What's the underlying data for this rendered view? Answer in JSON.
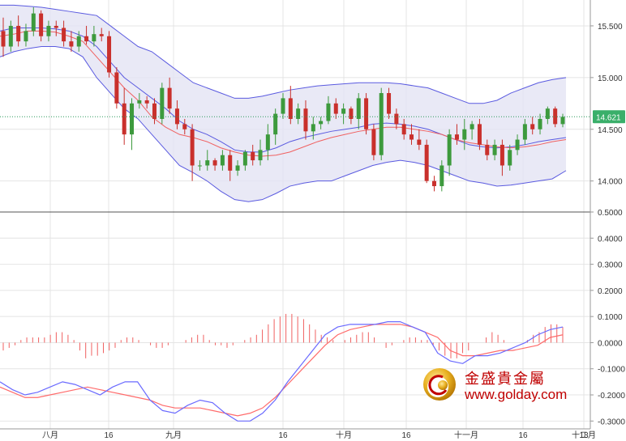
{
  "chart_data": [
    {
      "type": "candlestick",
      "panel": "price",
      "indicators": [
        "Bollinger Bands",
        "Moving Average"
      ],
      "ylim": [
        13.7,
        15.75
      ],
      "y_ticks": [
        "14.000",
        "14.500",
        "15.000",
        "15.500"
      ],
      "current_price": "14.621",
      "x_labels": [
        "八月",
        "16",
        "九月",
        "16",
        "十月",
        "16",
        "十一月",
        "16",
        "十二月",
        "18"
      ],
      "grid": true,
      "ohlc": [
        [
          15.45,
          15.58,
          15.2,
          15.3
        ],
        [
          15.3,
          15.55,
          15.25,
          15.5
        ],
        [
          15.5,
          15.6,
          15.3,
          15.35
        ],
        [
          15.35,
          15.52,
          15.3,
          15.45
        ],
        [
          15.45,
          15.68,
          15.4,
          15.62
        ],
        [
          15.62,
          15.65,
          15.35,
          15.4
        ],
        [
          15.4,
          15.55,
          15.35,
          15.5
        ],
        [
          15.5,
          15.55,
          15.4,
          15.48
        ],
        [
          15.48,
          15.55,
          15.3,
          15.35
        ],
        [
          15.35,
          15.45,
          15.25,
          15.3
        ],
        [
          15.3,
          15.45,
          15.25,
          15.4
        ],
        [
          15.4,
          15.5,
          15.32,
          15.35
        ],
        [
          15.35,
          15.5,
          15.3,
          15.42
        ],
        [
          15.42,
          15.48,
          15.35,
          15.4
        ],
        [
          15.4,
          15.45,
          15.0,
          15.05
        ],
        [
          15.05,
          15.1,
          14.7,
          14.75
        ],
        [
          14.75,
          14.9,
          14.35,
          14.45
        ],
        [
          14.45,
          14.8,
          14.3,
          14.75
        ],
        [
          14.75,
          14.85,
          14.7,
          14.78
        ],
        [
          14.78,
          14.82,
          14.7,
          14.75
        ],
        [
          14.75,
          14.8,
          14.55,
          14.6
        ],
        [
          14.6,
          14.95,
          14.55,
          14.9
        ],
        [
          14.9,
          15.0,
          14.65,
          14.7
        ],
        [
          14.7,
          14.78,
          14.5,
          14.55
        ],
        [
          14.55,
          14.6,
          14.45,
          14.5
        ],
        [
          14.5,
          14.55,
          14.0,
          14.15
        ],
        [
          14.15,
          14.2,
          14.1,
          14.15
        ],
        [
          14.15,
          14.3,
          14.1,
          14.2
        ],
        [
          14.2,
          14.22,
          14.1,
          14.15
        ],
        [
          14.15,
          14.3,
          14.1,
          14.25
        ],
        [
          14.25,
          14.3,
          14.0,
          14.1
        ],
        [
          14.1,
          14.2,
          14.05,
          14.15
        ],
        [
          14.15,
          14.3,
          14.1,
          14.28
        ],
        [
          14.28,
          14.35,
          14.15,
          14.2
        ],
        [
          14.2,
          14.4,
          14.15,
          14.3
        ],
        [
          14.3,
          14.55,
          14.2,
          14.45
        ],
        [
          14.45,
          14.7,
          14.35,
          14.65
        ],
        [
          14.65,
          14.85,
          14.6,
          14.8
        ],
        [
          14.8,
          14.92,
          14.55,
          14.6
        ],
        [
          14.6,
          14.75,
          14.55,
          14.7
        ],
        [
          14.7,
          14.78,
          14.4,
          14.48
        ],
        [
          14.48,
          14.62,
          14.4,
          14.55
        ],
        [
          14.55,
          14.62,
          14.5,
          14.58
        ],
        [
          14.58,
          14.82,
          14.55,
          14.75
        ],
        [
          14.75,
          14.8,
          14.6,
          14.65
        ],
        [
          14.65,
          14.75,
          14.55,
          14.7
        ],
        [
          14.7,
          14.72,
          14.55,
          14.6
        ],
        [
          14.6,
          14.85,
          14.5,
          14.8
        ],
        [
          14.8,
          14.85,
          14.45,
          14.5
        ],
        [
          14.5,
          14.55,
          14.2,
          14.25
        ],
        [
          14.25,
          14.9,
          14.2,
          14.85
        ],
        [
          14.85,
          14.9,
          14.6,
          14.65
        ],
        [
          14.65,
          14.7,
          14.5,
          14.55
        ],
        [
          14.55,
          14.6,
          14.4,
          14.45
        ],
        [
          14.45,
          14.55,
          14.35,
          14.4
        ],
        [
          14.4,
          14.5,
          14.3,
          14.35
        ],
        [
          14.35,
          14.4,
          13.98,
          14.0
        ],
        [
          14.0,
          14.05,
          13.9,
          13.95
        ],
        [
          13.95,
          14.2,
          13.9,
          14.15
        ],
        [
          14.15,
          14.5,
          14.05,
          14.45
        ],
        [
          14.45,
          14.55,
          14.35,
          14.4
        ],
        [
          14.4,
          14.6,
          14.3,
          14.5
        ],
        [
          14.5,
          14.58,
          14.4,
          14.55
        ],
        [
          14.55,
          14.6,
          14.3,
          14.35
        ],
        [
          14.35,
          14.4,
          14.2,
          14.25
        ],
        [
          14.25,
          14.4,
          14.2,
          14.35
        ],
        [
          14.35,
          14.4,
          14.05,
          14.15
        ],
        [
          14.15,
          14.35,
          14.1,
          14.3
        ],
        [
          14.3,
          14.45,
          14.25,
          14.4
        ],
        [
          14.4,
          14.6,
          14.35,
          14.55
        ],
        [
          14.55,
          14.62,
          14.45,
          14.5
        ],
        [
          14.5,
          14.65,
          14.45,
          14.6
        ],
        [
          14.6,
          14.72,
          14.55,
          14.7
        ],
        [
          14.7,
          14.72,
          14.52,
          14.55
        ],
        [
          14.55,
          14.65,
          14.52,
          14.62
        ]
      ],
      "bollinger_upper": [
        15.7,
        15.7,
        15.69,
        15.68,
        15.66,
        15.64,
        15.62,
        15.6,
        15.5,
        15.4,
        15.3,
        15.25,
        15.15,
        15.05,
        14.95,
        14.9,
        14.85,
        14.8,
        14.8,
        14.82,
        14.85,
        14.88,
        14.9,
        14.92,
        14.93,
        14.94,
        14.95,
        14.95,
        14.95,
        14.94,
        14.92,
        14.9,
        14.85,
        14.8,
        14.75,
        14.75,
        14.78,
        14.85,
        14.9,
        14.95,
        14.98,
        15.0
      ],
      "bollinger_lower": [
        15.2,
        15.25,
        15.28,
        15.3,
        15.3,
        15.28,
        15.2,
        15.0,
        14.85,
        14.7,
        14.6,
        14.45,
        14.3,
        14.15,
        14.08,
        14.0,
        13.9,
        13.82,
        13.8,
        13.82,
        13.88,
        13.95,
        13.98,
        14.0,
        14.0,
        14.05,
        14.1,
        14.15,
        14.18,
        14.2,
        14.18,
        14.15,
        14.1,
        14.05,
        14.0,
        13.98,
        13.95,
        13.96,
        13.98,
        14.0,
        14.02,
        14.1
      ],
      "bollinger_middle": [
        15.45,
        15.48,
        15.48,
        15.48,
        15.47,
        15.45,
        15.4,
        15.3,
        15.15,
        15.0,
        14.9,
        14.8,
        14.7,
        14.58,
        14.5,
        14.45,
        14.38,
        14.3,
        14.28,
        14.28,
        14.32,
        14.38,
        14.42,
        14.45,
        14.48,
        14.5,
        14.52,
        14.55,
        14.56,
        14.55,
        14.53,
        14.5,
        14.45,
        14.4,
        14.35,
        14.33,
        14.32,
        14.33,
        14.35,
        14.38,
        14.4,
        14.42
      ],
      "moving_average": [
        15.4,
        15.42,
        15.45,
        15.45,
        15.44,
        15.4,
        15.35,
        15.2,
        15.05,
        14.9,
        14.78,
        14.62,
        14.52,
        14.45,
        14.42,
        14.38,
        14.32,
        14.28,
        14.25,
        14.24,
        14.25,
        14.28,
        14.33,
        14.38,
        14.42,
        14.45,
        14.48,
        14.5,
        14.52,
        14.52,
        14.5,
        14.48,
        14.45,
        14.4,
        14.37,
        14.35,
        14.33,
        14.32,
        14.33,
        14.35,
        14.38,
        14.4
      ]
    },
    {
      "type": "line",
      "panel": "MACD",
      "ylim": [
        -0.33,
        0.5
      ],
      "y_ticks": [
        "-0.3000",
        "-0.2000",
        "-0.1000",
        "0.0000",
        "0.1000",
        "0.2000",
        "0.3000",
        "0.4000",
        "0.5000"
      ],
      "macd_line": [
        -0.15,
        -0.18,
        -0.2,
        -0.19,
        -0.17,
        -0.15,
        -0.16,
        -0.18,
        -0.2,
        -0.17,
        -0.15,
        -0.15,
        -0.22,
        -0.26,
        -0.27,
        -0.24,
        -0.22,
        -0.23,
        -0.27,
        -0.3,
        -0.3,
        -0.27,
        -0.22,
        -0.15,
        -0.09,
        -0.03,
        0.03,
        0.06,
        0.07,
        0.07,
        0.07,
        0.08,
        0.08,
        0.06,
        0.04,
        -0.04,
        -0.07,
        -0.08,
        -0.05,
        -0.05,
        -0.04,
        -0.02,
        0.0,
        0.03,
        0.05,
        0.06
      ],
      "signal_line": [
        -0.17,
        -0.19,
        -0.21,
        -0.21,
        -0.2,
        -0.19,
        -0.18,
        -0.17,
        -0.18,
        -0.19,
        -0.2,
        -0.21,
        -0.22,
        -0.24,
        -0.25,
        -0.25,
        -0.25,
        -0.26,
        -0.27,
        -0.28,
        -0.27,
        -0.25,
        -0.21,
        -0.16,
        -0.11,
        -0.06,
        -0.01,
        0.03,
        0.05,
        0.06,
        0.07,
        0.07,
        0.07,
        0.06,
        0.04,
        0.02,
        -0.03,
        -0.05,
        -0.05,
        -0.04,
        -0.03,
        -0.03,
        -0.02,
        -0.01,
        0.02,
        0.03
      ],
      "histogram": [
        -0.03,
        -0.02,
        -0.01,
        0.01,
        0.02,
        0.02,
        0.02,
        0.02,
        0.03,
        0.04,
        0.04,
        0.03,
        0.01,
        -0.03,
        -0.06,
        -0.05,
        -0.05,
        -0.04,
        -0.03,
        -0.02,
        0.01,
        0.02,
        0.02,
        0.01,
        0.0,
        -0.01,
        -0.02,
        -0.02,
        -0.01,
        0.0,
        0.0,
        0.01,
        0.02,
        0.03,
        0.03,
        0.01,
        -0.01,
        -0.01,
        -0.02,
        -0.01,
        0.0,
        0.01,
        0.02,
        0.03,
        0.05,
        0.07,
        0.09,
        0.1,
        0.11,
        0.11,
        0.1,
        0.09,
        0.07,
        0.05,
        0.03,
        0.02,
        0.01,
        0.0,
        0.01,
        0.02,
        0.03,
        0.04,
        0.04,
        0.02,
        0.0,
        -0.02,
        -0.01,
        0.0,
        0.01,
        0.02,
        0.02,
        0.01,
        0.01,
        -0.01,
        -0.03,
        -0.05,
        -0.06,
        -0.06,
        -0.04,
        -0.03,
        0.0,
        0.0,
        0.02,
        0.04,
        0.03,
        0.01,
        0.0,
        0.0,
        0.0,
        0.01,
        0.03,
        0.04,
        0.06,
        0.07,
        0.07,
        0.06
      ]
    }
  ],
  "watermark": {
    "brand_cn": "金盛貴金屬",
    "url": "www.golday.com"
  },
  "colors": {
    "bull": "#3d9a3d",
    "bear": "#c9302c",
    "band": "#5a5ae0",
    "band_fill": "#e4e4f4",
    "ma": "#f06060",
    "macd": "#6a6aff",
    "signal": "#ff6b6b",
    "grid": "#e4e4e4",
    "price_tag": "#3aaf6a",
    "logo": "#c00000"
  }
}
